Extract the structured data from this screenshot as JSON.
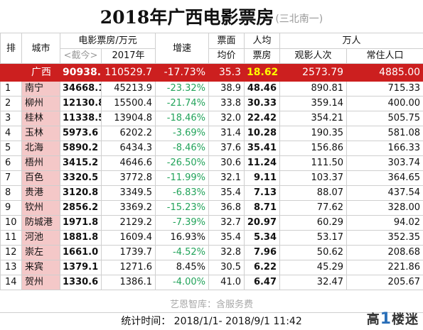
{
  "title": "2018年广西电影票房",
  "subtitle": "(三北南一)",
  "headers": {
    "rank": "排",
    "city": "城市",
    "box_group": "电影票房/万元",
    "to_date": "<截今>",
    "y2017": "2017年",
    "growth": "增速",
    "price1": "票面",
    "price2": "均价",
    "percap1": "人均",
    "percap2": "票房",
    "wan": "万人",
    "viewers": "观影人次",
    "population": "常住人口"
  },
  "summary": {
    "city": "广西",
    "box_to_date": "90938.2",
    "box_2017": "110529.7",
    "growth": "-17.73%",
    "avg_price": "35.3",
    "per_capita": "18.62",
    "viewers": "2573.79",
    "population": "4885.00"
  },
  "rows": [
    {
      "rank": "1",
      "city": "南宁",
      "box_to_date": "34668.1",
      "box_2017": "45213.9",
      "growth": "-23.32%",
      "avg_price": "38.9",
      "per_capita": "48.46",
      "viewers": "890.81",
      "population": "715.33"
    },
    {
      "rank": "2",
      "city": "柳州",
      "box_to_date": "12130.8",
      "box_2017": "15500.4",
      "growth": "-21.74%",
      "avg_price": "33.8",
      "per_capita": "30.33",
      "viewers": "359.14",
      "population": "400.00"
    },
    {
      "rank": "3",
      "city": "桂林",
      "box_to_date": "11338.5",
      "box_2017": "13904.8",
      "growth": "-18.46%",
      "avg_price": "32.0",
      "per_capita": "22.42",
      "viewers": "354.21",
      "population": "505.75"
    },
    {
      "rank": "4",
      "city": "玉林",
      "box_to_date": "5973.6",
      "box_2017": "6202.2",
      "growth": "-3.69%",
      "avg_price": "31.4",
      "per_capita": "10.28",
      "viewers": "190.35",
      "population": "581.08"
    },
    {
      "rank": "5",
      "city": "北海",
      "box_to_date": "5890.2",
      "box_2017": "6434.3",
      "growth": "-8.46%",
      "avg_price": "37.6",
      "per_capita": "35.41",
      "viewers": "156.86",
      "population": "166.33"
    },
    {
      "rank": "6",
      "city": "梧州",
      "box_to_date": "3415.2",
      "box_2017": "4646.6",
      "growth": "-26.50%",
      "avg_price": "30.6",
      "per_capita": "11.24",
      "viewers": "111.50",
      "population": "303.74"
    },
    {
      "rank": "7",
      "city": "百色",
      "box_to_date": "3320.5",
      "box_2017": "3772.8",
      "growth": "-11.99%",
      "avg_price": "32.1",
      "per_capita": "9.11",
      "viewers": "103.37",
      "population": "364.65"
    },
    {
      "rank": "8",
      "city": "贵港",
      "box_to_date": "3120.8",
      "box_2017": "3349.5",
      "growth": "-6.83%",
      "avg_price": "35.4",
      "per_capita": "7.13",
      "viewers": "88.07",
      "population": "437.54"
    },
    {
      "rank": "9",
      "city": "钦州",
      "box_to_date": "2856.2",
      "box_2017": "3369.2",
      "growth": "-15.23%",
      "avg_price": "36.8",
      "per_capita": "8.71",
      "viewers": "77.62",
      "population": "328.00"
    },
    {
      "rank": "10",
      "city": "防城港",
      "box_to_date": "1971.8",
      "box_2017": "2129.2",
      "growth": "-7.39%",
      "avg_price": "32.7",
      "per_capita": "20.97",
      "viewers": "60.29",
      "population": "94.02"
    },
    {
      "rank": "11",
      "city": "河池",
      "box_to_date": "1881.8",
      "box_2017": "1609.4",
      "growth": "16.93%",
      "avg_price": "35.4",
      "per_capita": "5.34",
      "viewers": "53.17",
      "population": "352.35"
    },
    {
      "rank": "12",
      "city": "崇左",
      "box_to_date": "1661.0",
      "box_2017": "1739.7",
      "growth": "-4.52%",
      "avg_price": "32.8",
      "per_capita": "7.96",
      "viewers": "50.62",
      "population": "208.68"
    },
    {
      "rank": "13",
      "city": "来宾",
      "box_to_date": "1379.1",
      "box_2017": "1271.6",
      "growth": "8.45%",
      "avg_price": "30.5",
      "per_capita": "6.22",
      "viewers": "45.29",
      "population": "221.86"
    },
    {
      "rank": "14",
      "city": "贺州",
      "box_to_date": "1330.6",
      "box_2017": "1386.1",
      "growth": "-4.00%",
      "avg_price": "41.0",
      "per_capita": "6.47",
      "viewers": "32.47",
      "population": "205.67"
    }
  ],
  "source": "艺恩智库：含服务费",
  "stat_time": "统计时间： 2018/1/1-  2018/9/1 11:42",
  "logo": {
    "prefix": "高",
    "one": "1",
    "suffix": "楼迷"
  },
  "colors": {
    "highlight_row": "#cc1f1f",
    "city_cell": "#f4c8c8",
    "negative_growth": "#22a35a",
    "per_capita_highlight": "#ffff00"
  }
}
